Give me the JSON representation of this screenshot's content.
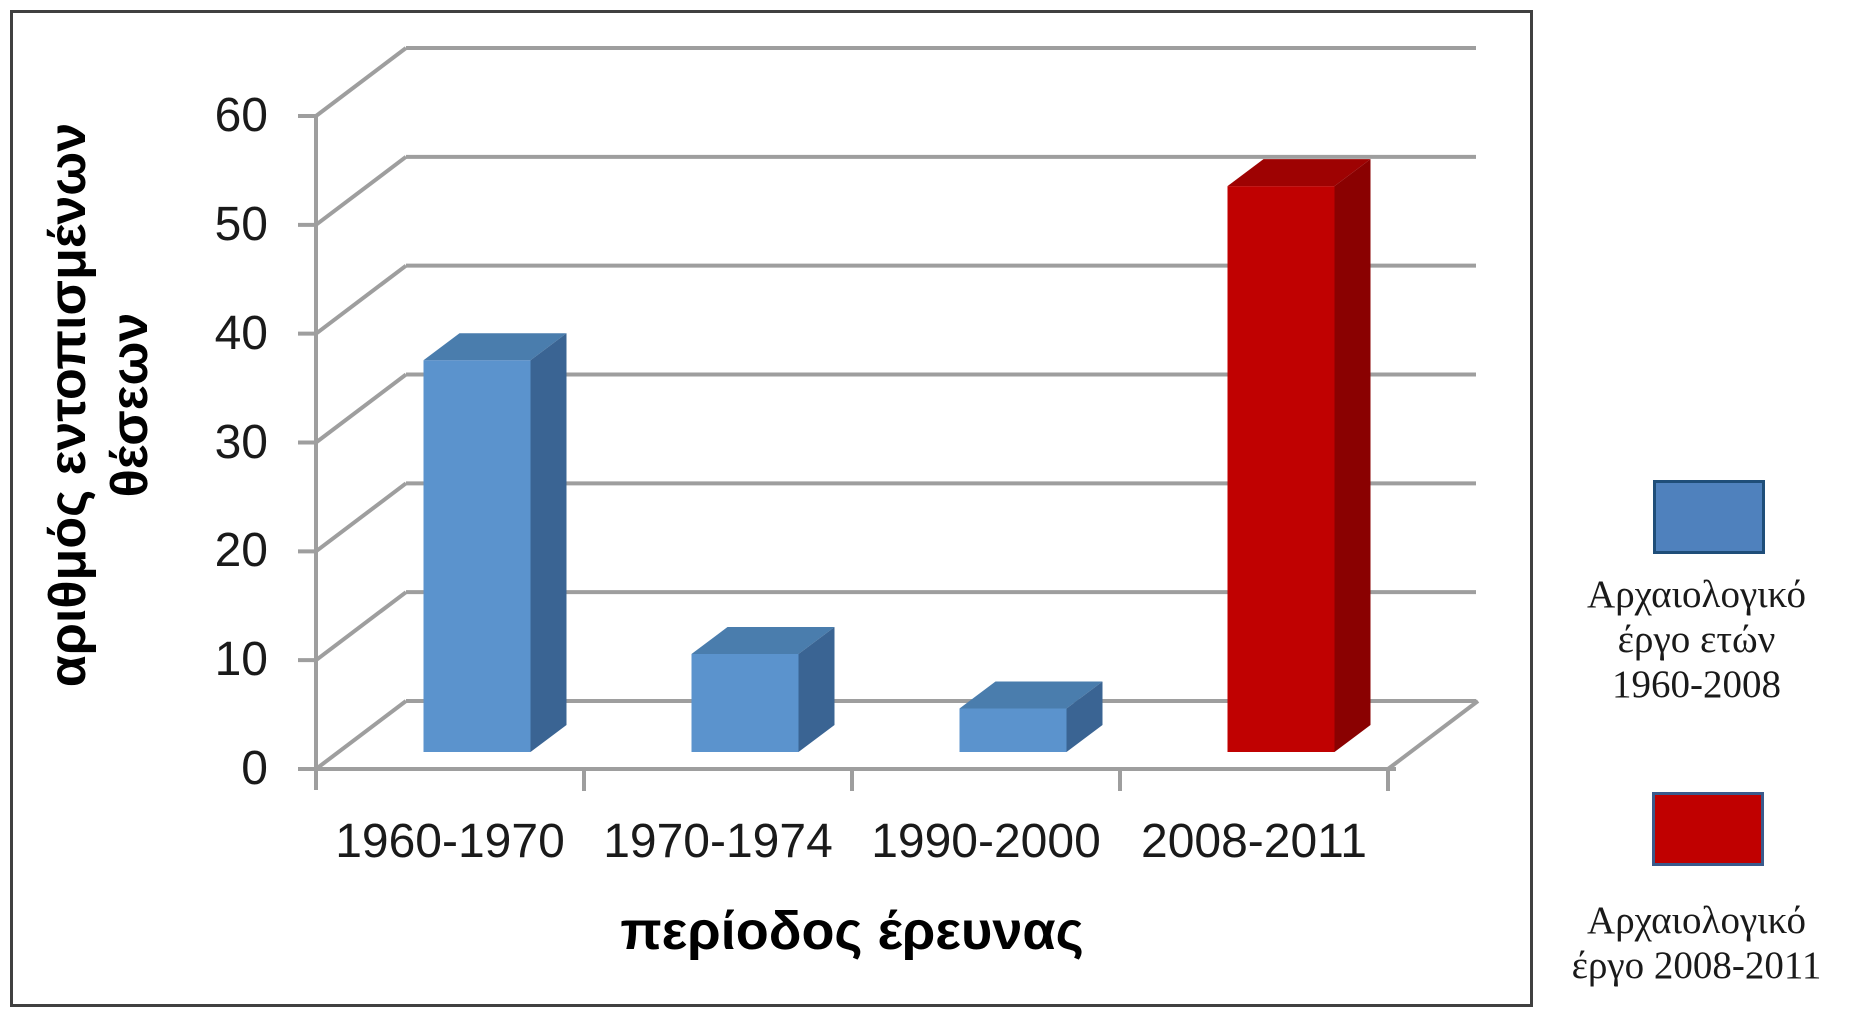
{
  "chart": {
    "y_axis_title": "αριθμός εντοπισμένων\nθέσεων",
    "x_axis_title": "περίοδος έρευνας"
  },
  "chart_data": {
    "type": "bar",
    "projection": "3d-oblique",
    "title": "",
    "xlabel": "περίοδος έρευνας",
    "ylabel": "αριθμός εντοπισμένων θέσεων",
    "categories": [
      "1960-1970",
      "1970-1974",
      "1990-2000",
      "2008-2011"
    ],
    "series": [
      {
        "name": "Αρχαιολογικό έργο ετών 1960-2008",
        "values": [
          36,
          9,
          4,
          null
        ],
        "colors": {
          "front": "#5B93CD",
          "top": "#4A7DAD",
          "side": "#3A6493"
        }
      },
      {
        "name": "Αρχαιολογικό έργο 2008-2011",
        "values": [
          null,
          null,
          null,
          52
        ],
        "colors": {
          "front": "#C00101",
          "top": "#9E0202",
          "side": "#8A0101"
        }
      }
    ],
    "y_ticks": [
      0,
      10,
      20,
      30,
      40,
      50,
      60
    ],
    "ylim": [
      0,
      60
    ],
    "grid": true,
    "gridline_color": "#9E9E9E",
    "legend_position": "right-outside"
  },
  "legend": {
    "items": [
      {
        "label": "Αρχαιολογικό\nέργο ετών\n1960-2008",
        "color": "#4F81BD",
        "border": "#1F4E79"
      },
      {
        "label": "Αρχαιολογικό\nέργο 2008-2011",
        "color": "#C00000",
        "border": "#3A5A8C"
      }
    ]
  }
}
